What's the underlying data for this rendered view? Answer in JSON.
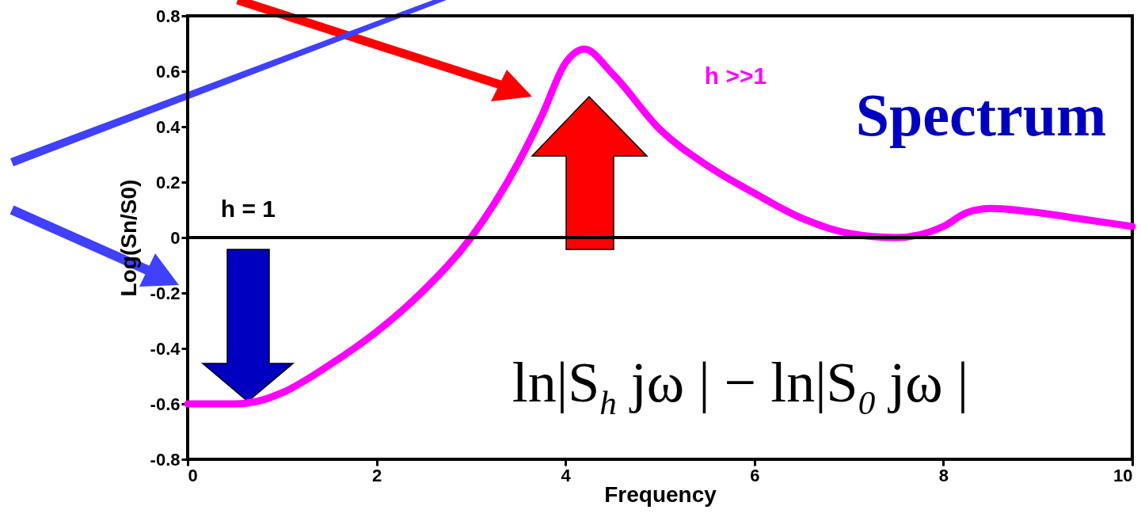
{
  "chart_data": {
    "type": "line",
    "xlabel": "Frequency",
    "ylabel": "Log(Sn/S0)",
    "x": [
      0,
      0.5,
      0.75,
      1,
      1.5,
      2,
      2.5,
      3,
      3.5,
      3.75,
      4,
      4.2,
      4.5,
      5,
      5.5,
      6,
      6.5,
      7,
      7.5,
      8,
      8.25,
      8.5,
      9,
      9.5,
      10
    ],
    "series": [
      {
        "color": "#ff00ff",
        "values": [
          -0.6,
          -0.6,
          -0.59,
          -0.56,
          -0.46,
          -0.34,
          -0.19,
          0.0,
          0.27,
          0.44,
          0.63,
          0.68,
          0.59,
          0.39,
          0.26,
          0.16,
          0.07,
          0.015,
          0,
          0.04,
          0.09,
          0.105,
          0.09,
          0.065,
          0.04
        ]
      }
    ],
    "xlim": [
      0,
      10
    ],
    "xticks": [
      0,
      2,
      4,
      6,
      8,
      10
    ],
    "ylim": [
      -0.8,
      0.8
    ],
    "yticks": [
      -0.8,
      -0.6,
      -0.4,
      -0.2,
      0,
      0.2,
      0.4,
      0.6,
      0.8
    ],
    "ref_lines": [
      {
        "axis": "y",
        "value": 0,
        "color": "#000000"
      }
    ],
    "annotations": [
      "h >>1",
      "Spectrum",
      "ln|S$_{h}$  jω  | − ln|S$_{0}$  jω  |",
      "h = 1"
    ],
    "grid": false,
    "marker": "none",
    "line_style": "solid"
  }
}
